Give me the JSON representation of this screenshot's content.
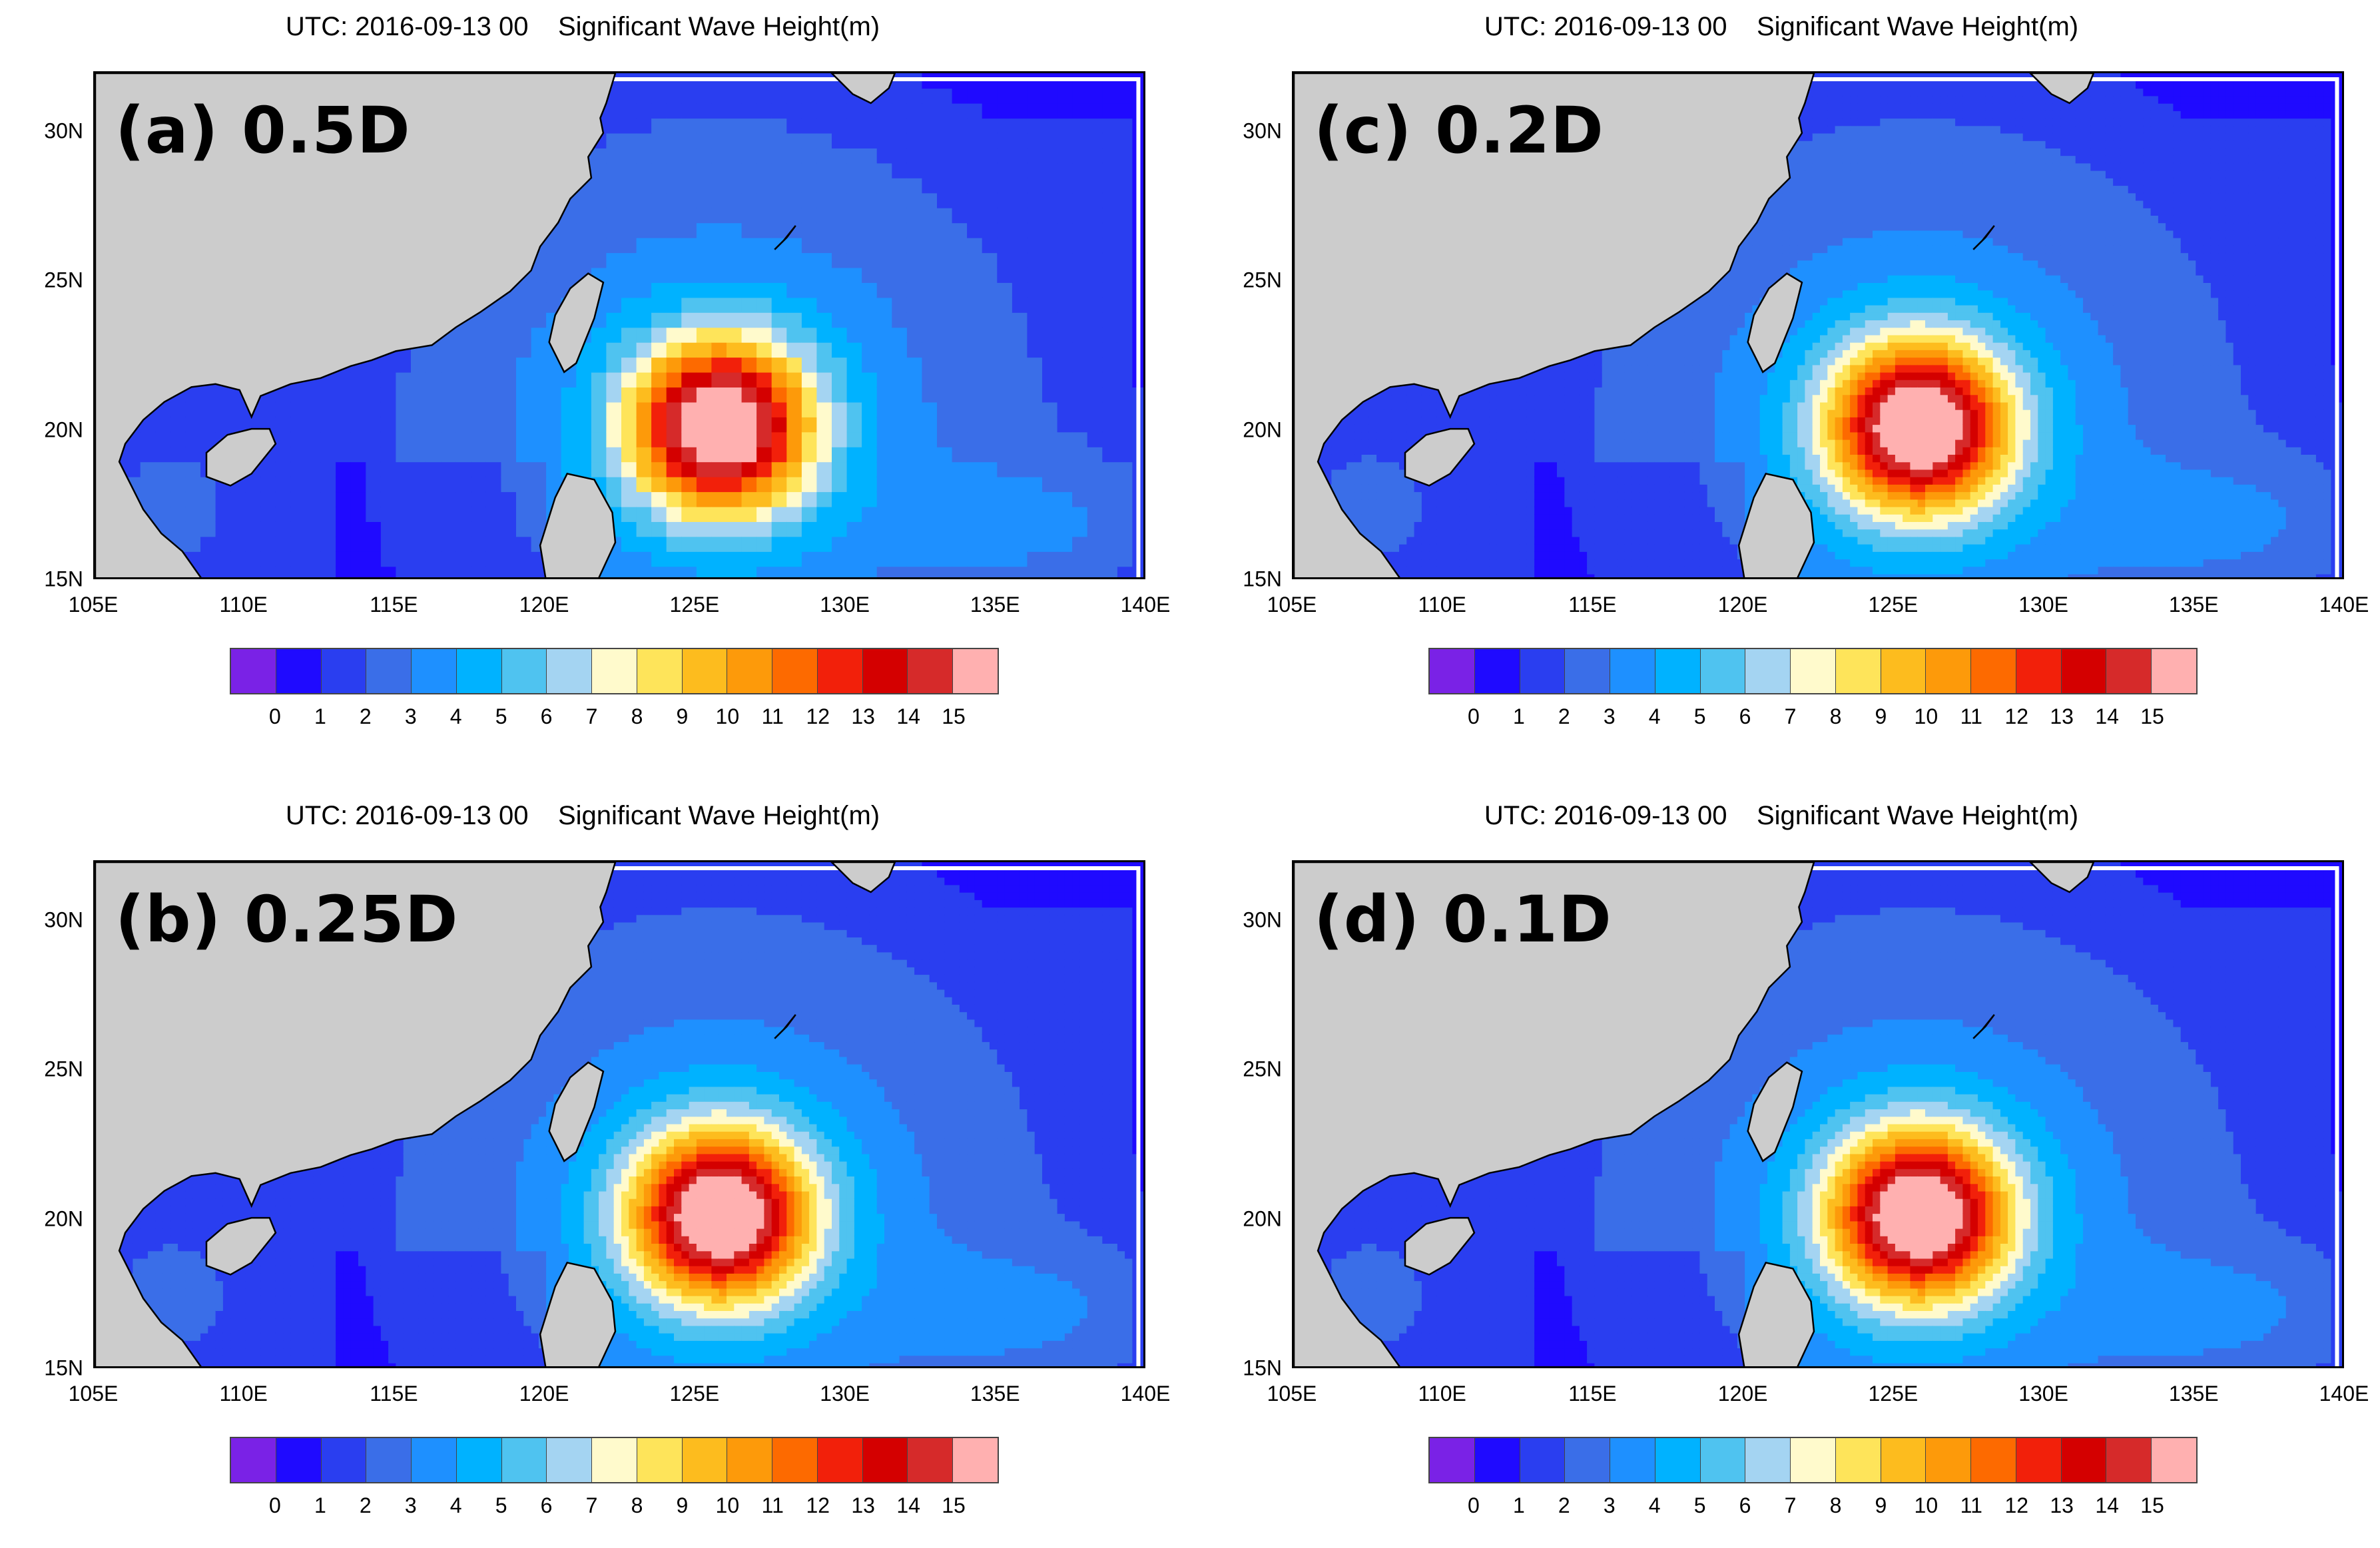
{
  "panels": [
    {
      "id": "a",
      "title": "UTC: 2016-09-13 00    Significant Wave Height(m)",
      "label": "(a) 0.5D"
    },
    {
      "id": "c",
      "title": "UTC: 2016-09-13 00    Significant Wave Height(m)",
      "label": "(c) 0.2D"
    },
    {
      "id": "b",
      "title": "UTC: 2016-09-13 00    Significant Wave Height(m)",
      "label": "(b) 0.25D"
    },
    {
      "id": "d",
      "title": "UTC: 2016-09-13 00    Significant Wave Height(m)",
      "label": "(d) 0.1D"
    }
  ],
  "axes": {
    "lat_labels": [
      "30N",
      "25N",
      "20N",
      "15N"
    ],
    "lon_labels": [
      "105E",
      "110E",
      "115E",
      "120E",
      "125E",
      "130E",
      "135E",
      "140E"
    ],
    "lat_range": [
      15,
      32
    ],
    "lon_range": [
      105,
      140
    ]
  },
  "colorbar": {
    "labels": [
      "0",
      "1",
      "2",
      "3",
      "4",
      "5",
      "6",
      "7",
      "8",
      "9",
      "10",
      "11",
      "12",
      "13",
      "14",
      "15"
    ],
    "colors": [
      "#7a22e6",
      "#1f0aff",
      "#2a3ef0",
      "#3a6ee8",
      "#1e90ff",
      "#00b2ff",
      "#4fc3f0",
      "#a4d4f2",
      "#fffacc",
      "#fee45a",
      "#fdbc1e",
      "#fd9a0a",
      "#fd6a00",
      "#f2200a",
      "#d40000",
      "#d62a2a",
      "#ffb0b0"
    ]
  },
  "colors": {
    "land": "#cccccc",
    "coast": "#000000"
  }
}
